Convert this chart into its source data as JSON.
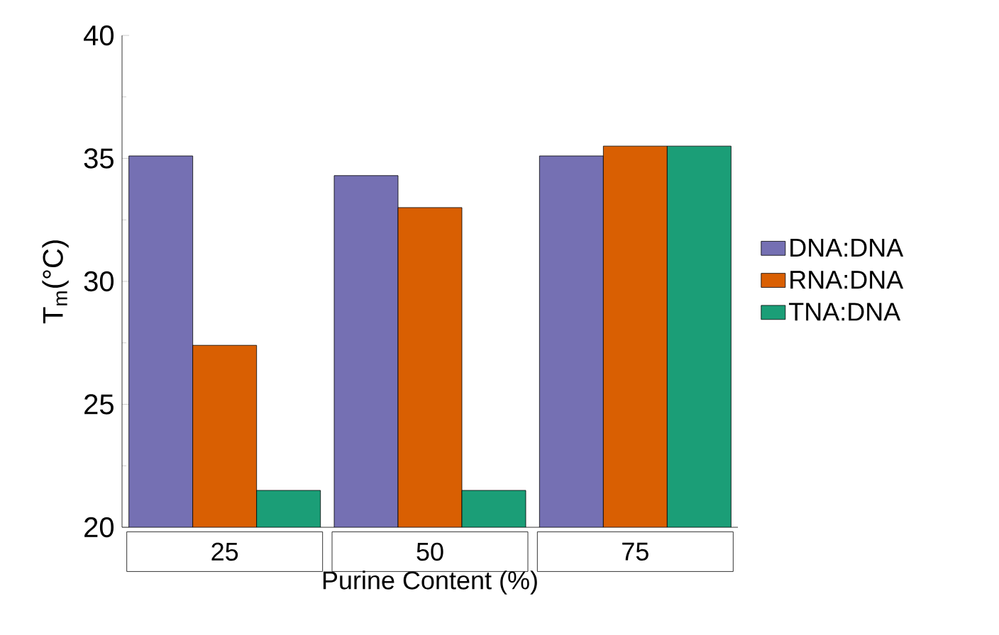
{
  "chart_data": {
    "type": "bar",
    "xlabel": "Purine Content (%)",
    "ylabel": "T$_{m}$(°C)",
    "categories": [
      "25",
      "50",
      "75"
    ],
    "series": [
      {
        "name": "DNA:DNA",
        "color": "#7570b3",
        "values": [
          35.1,
          34.3,
          35.1
        ]
      },
      {
        "name": "RNA:DNA",
        "color": "#d95f02",
        "values": [
          27.4,
          33.0,
          35.5
        ]
      },
      {
        "name": "TNA:DNA",
        "color": "#1b9e77",
        "values": [
          21.5,
          21.5,
          35.5
        ]
      }
    ],
    "ylim": [
      20,
      40
    ],
    "yticks": [
      20,
      25,
      30,
      35,
      40
    ],
    "grid": false,
    "legend": "right"
  }
}
